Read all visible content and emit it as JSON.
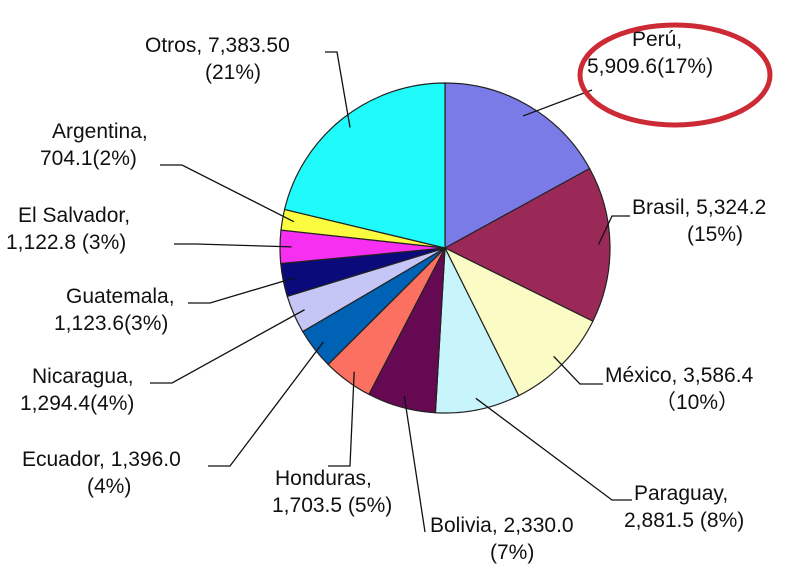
{
  "chart_data": {
    "type": "pie",
    "title": "",
    "start": "12 o'clock, clockwise",
    "slices": [
      {
        "label": "Perú",
        "value": 5909.6,
        "percent": 17,
        "color": "#7b7be8",
        "text": [
          "Perú,",
          "5,909.6(17%)"
        ],
        "highlighted": true
      },
      {
        "label": "Brasil",
        "value": 5324.2,
        "percent": 15,
        "color": "#9b2958",
        "text": [
          "Brasil, 5,324.2",
          "(15%)"
        ]
      },
      {
        "label": "México",
        "value": 3586.4,
        "percent": 10,
        "color": "#fbfbc6",
        "text": [
          "México, 3,586.4",
          "（10%）"
        ]
      },
      {
        "label": "Paraguay",
        "value": 2881.5,
        "percent": 8,
        "color": "#c8f5fb",
        "text": [
          "Paraguay,",
          "2,881.5 (8%)"
        ]
      },
      {
        "label": "Bolivia",
        "value": 2330.0,
        "percent": 7,
        "color": "#650a52",
        "text": [
          "Bolivia, 2,330.0",
          "(7%)"
        ]
      },
      {
        "label": "Honduras",
        "value": 1703.5,
        "percent": 5,
        "color": "#fb7060",
        "text": [
          "Honduras,",
          "1,703.5 (5%)"
        ]
      },
      {
        "label": "Ecuador",
        "value": 1396.0,
        "percent": 4,
        "color": "#0062b5",
        "text": [
          "Ecuador, 1,396.0",
          "(4%)"
        ]
      },
      {
        "label": "Nicaragua",
        "value": 1294.4,
        "percent": 4,
        "color": "#c6c6f6",
        "text": [
          "Nicaragua,",
          "1,294.4(4%)"
        ]
      },
      {
        "label": "Guatemala",
        "value": 1123.6,
        "percent": 3,
        "color": "#0a0a7a",
        "text": [
          "Guatemala,",
          "1,123.6(3%)"
        ]
      },
      {
        "label": "El Salvador",
        "value": 1122.8,
        "percent": 3,
        "color": "#f72ff0",
        "text": [
          "El Salvador,",
          "1,122.8 (3%)"
        ]
      },
      {
        "label": "Argentina",
        "value": 704.1,
        "percent": 2,
        "color": "#fbfb40",
        "text": [
          "Argentina,",
          "704.1(2%)"
        ]
      },
      {
        "label": "Otros",
        "value": 7383.5,
        "percent": 21,
        "color": "#1ffbfb",
        "text": [
          "Otros, 7,383.50",
          "(21%)"
        ]
      }
    ],
    "highlight": {
      "label": "Perú",
      "shape": "ellipse",
      "color": "#cc2a35"
    }
  }
}
